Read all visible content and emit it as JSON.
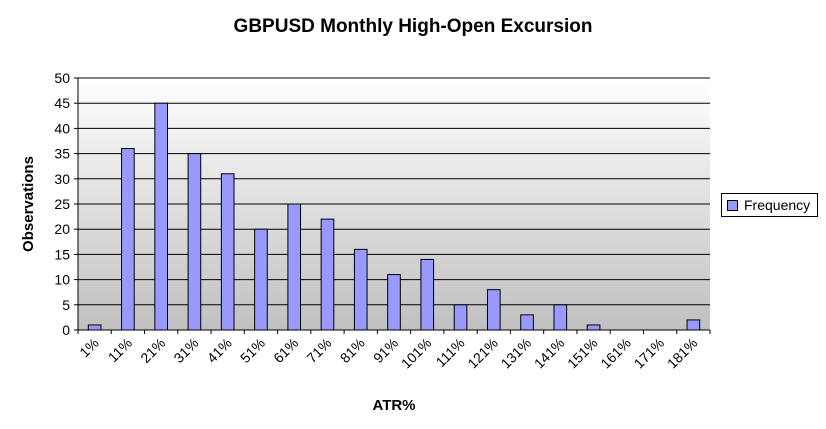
{
  "chart_data": {
    "type": "bar",
    "title": "GBPUSD Monthly High-Open Excursion",
    "xlabel": "ATR%",
    "ylabel": "Observations",
    "ylim": [
      0,
      50
    ],
    "yticks": [
      0,
      5,
      10,
      15,
      20,
      25,
      30,
      35,
      40,
      45,
      50
    ],
    "grid": true,
    "legend_position": "right",
    "bar_color": "#9999ff",
    "categories": [
      "1%",
      "11%",
      "21%",
      "31%",
      "41%",
      "51%",
      "61%",
      "71%",
      "81%",
      "91%",
      "101%",
      "111%",
      "121%",
      "131%",
      "141%",
      "151%",
      "161%",
      "171%",
      "181%"
    ],
    "series": [
      {
        "name": "Frequency",
        "values": [
          1,
          36,
          45,
          35,
          31,
          20,
          25,
          22,
          16,
          11,
          14,
          5,
          8,
          3,
          5,
          1,
          0,
          0,
          2
        ]
      }
    ]
  }
}
